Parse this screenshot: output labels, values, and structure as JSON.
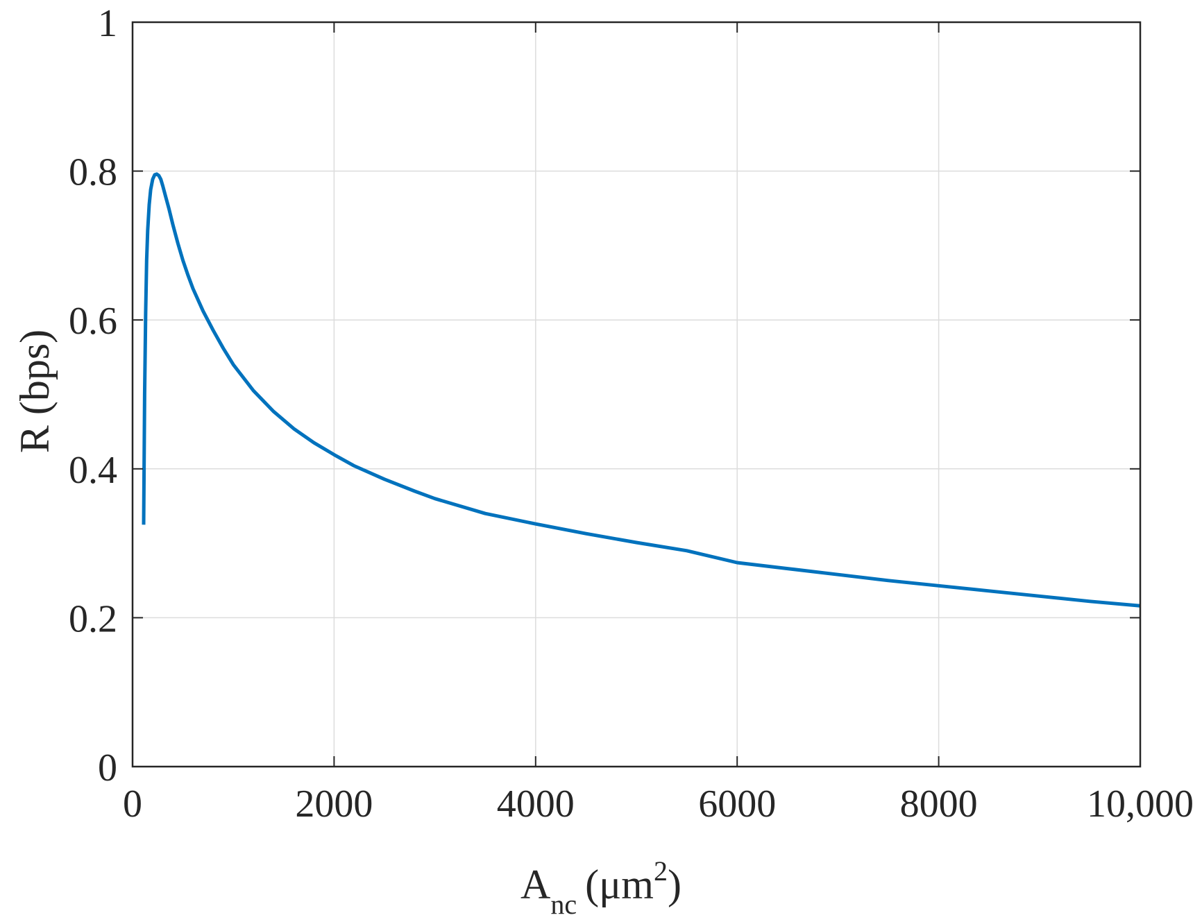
{
  "chart_data": {
    "type": "line",
    "title": "",
    "xlabel_main": "A",
    "xlabel_sub": "nc",
    "xlabel_unit_open": "(μm",
    "xlabel_sup": "2",
    "xlabel_unit_close": ")",
    "ylabel": "R (bps)",
    "xlim": [
      0,
      10000
    ],
    "ylim": [
      0,
      1
    ],
    "xticks": [
      0,
      2000,
      4000,
      6000,
      8000,
      10000
    ],
    "xtick_labels": [
      "0",
      "2000",
      "4000",
      "6000",
      "8000",
      "10,000"
    ],
    "yticks": [
      0,
      0.2,
      0.4,
      0.6,
      0.8,
      1
    ],
    "ytick_labels": [
      "0",
      "0.2",
      "0.4",
      "0.6",
      "0.8",
      "1"
    ],
    "grid": true,
    "line_color": "#0072BD",
    "series": [
      {
        "x": [
          110,
          120,
          130,
          140,
          150,
          165,
          180,
          200,
          220,
          240,
          260,
          280,
          300,
          330,
          360,
          400,
          450,
          500,
          550,
          600,
          700,
          800,
          900,
          1000,
          1200,
          1400,
          1600,
          1800,
          2000,
          2200,
          2500,
          2800,
          3000,
          3500,
          4000,
          4500,
          5000,
          5500,
          6000,
          6500,
          7000,
          7500,
          8000,
          8500,
          9000,
          9500,
          10000
        ],
        "y": [
          0.325,
          0.5,
          0.61,
          0.68,
          0.72,
          0.755,
          0.775,
          0.789,
          0.795,
          0.796,
          0.794,
          0.789,
          0.78,
          0.765,
          0.75,
          0.728,
          0.703,
          0.68,
          0.66,
          0.642,
          0.612,
          0.586,
          0.562,
          0.54,
          0.505,
          0.477,
          0.454,
          0.435,
          0.419,
          0.404,
          0.386,
          0.37,
          0.36,
          0.34,
          0.326,
          0.313,
          0.301,
          0.29,
          0.274,
          0.266,
          0.258,
          0.25,
          0.243,
          0.236,
          0.229,
          0.222,
          0.216
        ]
      }
    ]
  }
}
